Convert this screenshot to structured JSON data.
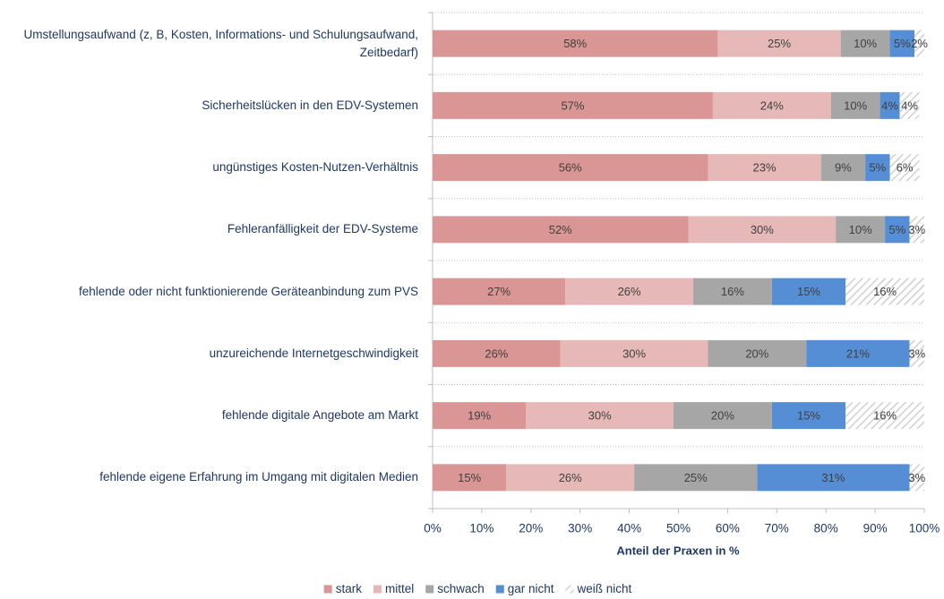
{
  "chart_data": {
    "type": "stacked-barh",
    "categories": [
      "Umstellungsaufwand (z, B, Kosten, Informations- und Schulungsaufwand, Zeitbedarf)",
      "Sicherheitslücken in den EDV-Systemen",
      "ungünstiges Kosten-Nutzen-Verhältnis",
      "Fehleranfälligkeit der EDV-Systeme",
      "fehlende oder nicht funktionierende Geräteanbindung zum PVS",
      "unzureichende Internetgeschwindigkeit",
      "fehlende digitale Angebote am Markt",
      "fehlende eigene Erfahrung im Umgang mit digitalen Medien"
    ],
    "series": [
      {
        "name": "stark",
        "color": "#d99694",
        "values": [
          58,
          57,
          56,
          52,
          27,
          26,
          19,
          15
        ],
        "value_labels": [
          "58%",
          "57%",
          "56%",
          "52%",
          "27%",
          "26%",
          "19%",
          "15%"
        ]
      },
      {
        "name": "mittel",
        "color": "#e6b9b8",
        "values": [
          25,
          24,
          23,
          30,
          26,
          30,
          30,
          26
        ],
        "value_labels": [
          "25%",
          "24%",
          "23%",
          "30%",
          "26%",
          "30%",
          "30%",
          "26%"
        ]
      },
      {
        "name": "schwach",
        "color": "#a6a6a6",
        "values": [
          10,
          10,
          9,
          10,
          16,
          20,
          20,
          25
        ],
        "value_labels": [
          "10%",
          "10%",
          "9%",
          "10%",
          "16%",
          "20%",
          "20%",
          "25%"
        ]
      },
      {
        "name": "gar nicht",
        "color": "#558ed5",
        "values": [
          5,
          4,
          5,
          5,
          15,
          21,
          15,
          31
        ],
        "value_labels": [
          "5%",
          "4%",
          "5%",
          "5%",
          "15%",
          "21%",
          "15%",
          "31%"
        ]
      },
      {
        "name": "weiß nicht",
        "color": "#d0d0d0",
        "hatch": true,
        "values": [
          2,
          4,
          6,
          3,
          16,
          3,
          16,
          3
        ],
        "value_labels": [
          "2%",
          "4%",
          "6%",
          "3%",
          "16%",
          "3%",
          "16%",
          "3%"
        ]
      }
    ],
    "xlabel": "Anteil der Praxen in %",
    "xlim": [
      0,
      100
    ],
    "xticks": [
      {
        "value": 0,
        "label": "0%"
      },
      {
        "value": 10,
        "label": "10%"
      },
      {
        "value": 20,
        "label": "20%"
      },
      {
        "value": 30,
        "label": "30%"
      },
      {
        "value": 40,
        "label": "40%"
      },
      {
        "value": 50,
        "label": "50%"
      },
      {
        "value": 60,
        "label": "60%"
      },
      {
        "value": 70,
        "label": "70%"
      },
      {
        "value": 80,
        "label": "80%"
      },
      {
        "value": 90,
        "label": "90%"
      },
      {
        "value": 100,
        "label": "100%"
      }
    ],
    "legend": "bottom"
  }
}
